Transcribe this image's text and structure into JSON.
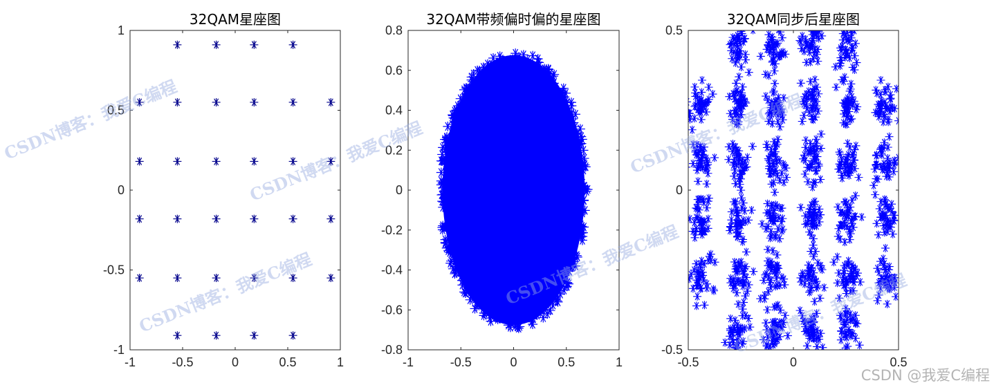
{
  "figure": {
    "watermark_text": "CSDN博客：我爱C编程",
    "corner_watermark": "CSDN @我爱C编程",
    "marker_color": "#0000ff",
    "ideal_marker_color": "#00008b"
  },
  "chart_data": [
    {
      "type": "scatter",
      "title": "32QAM星座图",
      "marker": "asterisk",
      "xlim": [
        -1,
        1
      ],
      "ylim": [
        -1,
        1
      ],
      "xticks": [
        "-1",
        "-0.5",
        "0",
        "0.5",
        "1"
      ],
      "yticks": [
        "-1",
        "-0.5",
        "0",
        "0.5",
        "1"
      ],
      "xtick_values": [
        -1,
        -0.5,
        0,
        0.5,
        1
      ],
      "ytick_values": [
        -1,
        -0.5,
        0,
        0.5,
        1
      ],
      "levels": [
        -0.91,
        -0.55,
        -0.18,
        0.18,
        0.55,
        0.91
      ],
      "points": "32 ideal points: 6x6 grid at levels ±0.18, ±0.55, ±0.91 with the four corners (±0.91, ±0.91) removed"
    },
    {
      "type": "scatter",
      "title": "32QAM带频偏时偏的星座图",
      "marker": "asterisk",
      "xlim": [
        -1,
        1
      ],
      "ylim": [
        -0.8,
        0.8
      ],
      "xticks": [
        "-1",
        "-0.5",
        "0",
        "0.5",
        "1"
      ],
      "yticks": [
        "-0.8",
        "-0.6",
        "-0.4",
        "-0.2",
        "0",
        "0.2",
        "0.4",
        "0.6",
        "0.8"
      ],
      "xtick_values": [
        -1,
        -0.5,
        0,
        0.5,
        1
      ],
      "ytick_values": [
        -0.8,
        -0.6,
        -0.4,
        -0.2,
        0,
        0.2,
        0.4,
        0.6,
        0.8
      ],
      "cloud": {
        "center": [
          0,
          0
        ],
        "x_extent": [
          -0.7,
          0.7
        ],
        "y_extent": [
          -0.68,
          0.7
        ]
      }
    },
    {
      "type": "scatter",
      "title": "32QAM同步后星座图",
      "marker": "asterisk",
      "xlim": [
        -0.5,
        0.5
      ],
      "ylim": [
        -0.5,
        0.5
      ],
      "xticks": [
        "-0.5",
        "0",
        "0.5"
      ],
      "yticks": [
        "-0.5",
        "0",
        "0.5"
      ],
      "xtick_values": [
        -0.5,
        0,
        0.5
      ],
      "ytick_values": [
        -0.5,
        0,
        0.5
      ],
      "outer_levels": [
        -0.44,
        -0.26,
        -0.09,
        0.09,
        0.26,
        0.44
      ],
      "top_bottom_x": [
        -0.26,
        -0.09,
        0.09,
        0.26
      ],
      "row_levels": [
        0.45,
        0.27,
        0.09,
        -0.09,
        -0.27,
        -0.44
      ],
      "cluster_spread": {
        "x": 0.025,
        "y": 0.035
      }
    }
  ]
}
